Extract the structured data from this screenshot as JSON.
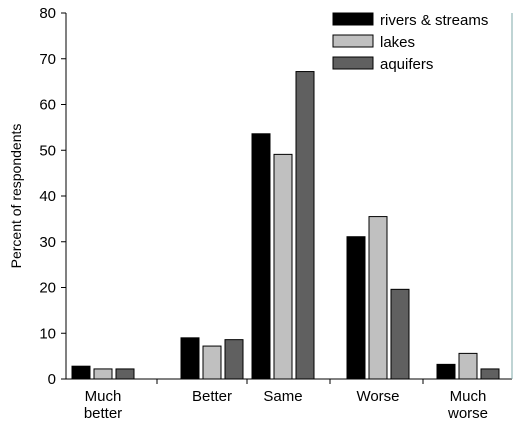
{
  "chart_data": {
    "type": "bar",
    "title": "",
    "xlabel": "",
    "ylabel": "Percent of respondents",
    "ylim": [
      0,
      80
    ],
    "yticks": [
      0,
      10,
      20,
      30,
      40,
      50,
      60,
      70,
      80
    ],
    "grid": false,
    "legend_position": "top-right",
    "categories": [
      [
        "Much",
        "better"
      ],
      [
        "Better"
      ],
      [
        "Same"
      ],
      [
        "Worse"
      ],
      [
        "Much",
        "worse"
      ]
    ],
    "series": [
      {
        "name": "rivers & streams",
        "color": "#000000",
        "values": [
          2.8,
          9.0,
          53.6,
          31.1,
          3.2
        ]
      },
      {
        "name": "lakes",
        "color": "#c0c0c0",
        "values": [
          2.2,
          7.2,
          49.1,
          35.5,
          5.6
        ]
      },
      {
        "name": "aquifers",
        "color": "#606060",
        "values": [
          2.2,
          8.6,
          67.2,
          19.6,
          2.2
        ]
      }
    ]
  }
}
